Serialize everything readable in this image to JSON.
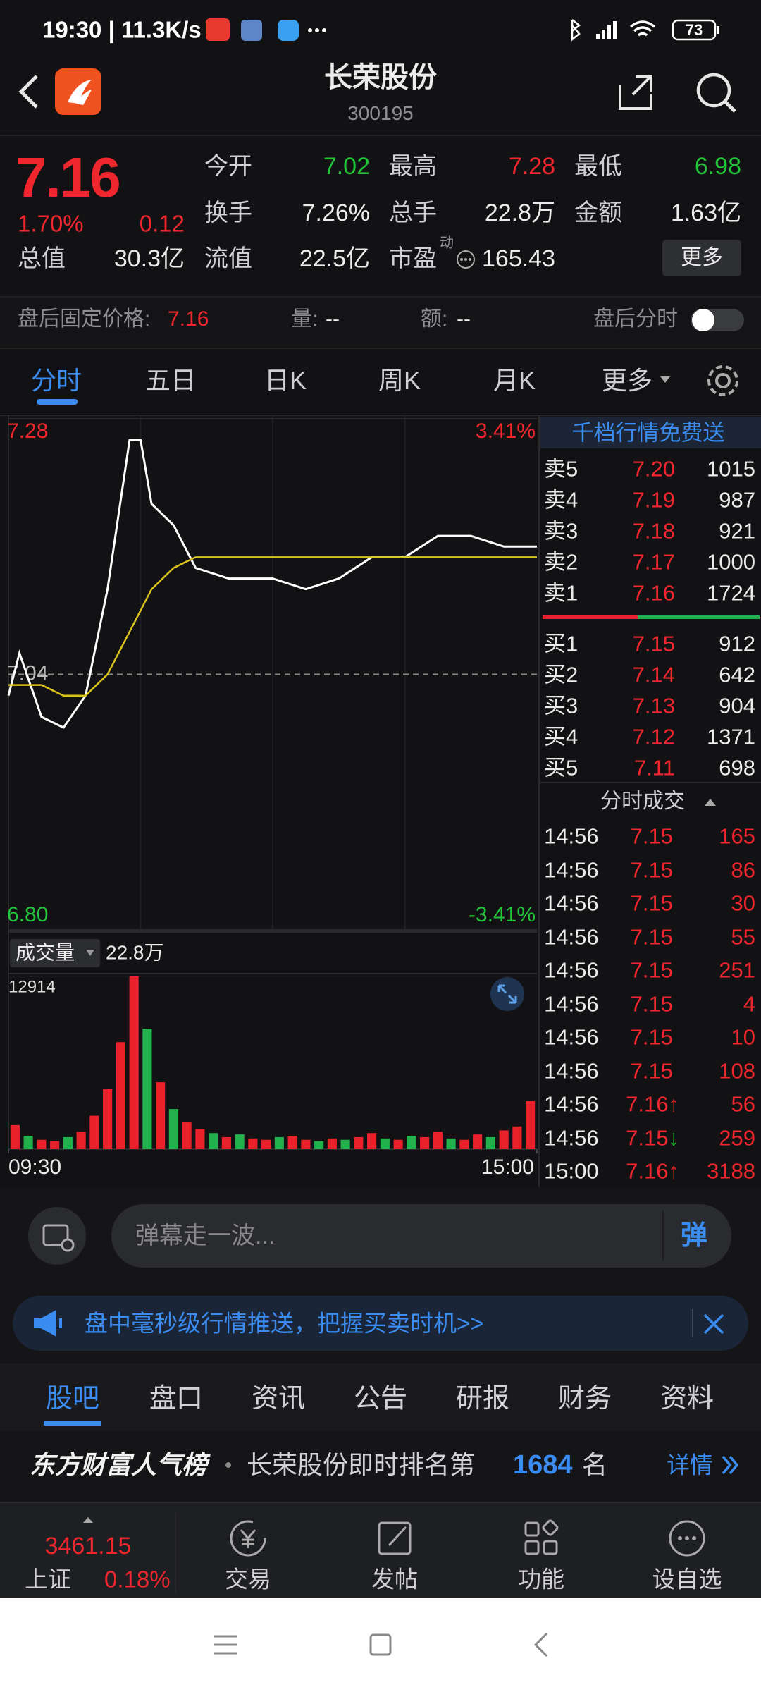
{
  "status_bar": {
    "left": "19:30 | 11.3K/s",
    "battery": "73"
  },
  "header": {
    "title": "长荣股份",
    "code": "300195"
  },
  "quote": {
    "price": "7.16",
    "change_pct": "1.70%",
    "change": "0.12",
    "stats": [
      [
        {
          "label": "今开",
          "value": "7.02"
        },
        {
          "label": "最高",
          "value": "7.28"
        },
        {
          "label": "最低",
          "value": "6.98"
        }
      ],
      [
        {
          "label": "换手",
          "value": "7.26%"
        },
        {
          "label": "总手",
          "value": "22.8万"
        },
        {
          "label": "金额",
          "value": "1.63亿"
        }
      ],
      [
        {
          "label": "总值",
          "value": "30.3亿"
        },
        {
          "label": "流值",
          "value": "22.5亿"
        },
        {
          "label": "市盈",
          "value": "165.43"
        }
      ]
    ],
    "pe_note": "动",
    "more": "更多"
  },
  "after_hours": {
    "label": "盘后固定价格:",
    "price": "7.16",
    "volume_label": "量:",
    "volume": "--",
    "amount_label": "额:",
    "amount": "--",
    "chart_toggle": "盘后分时"
  },
  "tabs": [
    "分时",
    "五日",
    "日K",
    "周K",
    "月K",
    "更多"
  ],
  "chart_data": [
    {
      "type": "line",
      "x": [
        0,
        5,
        15,
        25,
        35,
        45,
        55,
        60,
        65,
        75,
        85,
        100,
        120,
        135,
        150,
        165,
        180,
        195,
        210,
        225,
        240
      ],
      "xlim": [
        0,
        240
      ],
      "xticks": [
        {
          "value": 0,
          "label": "09:30"
        },
        {
          "value": 240,
          "label": "15:00"
        }
      ],
      "ylim": [
        6.8,
        7.28
      ],
      "yticks": [
        7.28,
        7.04,
        {
          "value": 6.8,
          "label": "6.80"
        }
      ],
      "y2lim": [
        -3.41,
        3.41
      ],
      "y2ticks": [
        {
          "value": 3.41,
          "label": "3.41%"
        },
        {
          "value": -3.41,
          "label": "-3.41%"
        }
      ],
      "series": [
        {
          "color": "#ffffff",
          "values": [
            7.02,
            7.06,
            7.0,
            6.99,
            7.02,
            7.12,
            7.26,
            7.26,
            7.2,
            7.18,
            7.14,
            7.13,
            7.13,
            7.12,
            7.13,
            7.15,
            7.15,
            7.17,
            7.17,
            7.16,
            7.16
          ]
        },
        {
          "color": "#dcc41e",
          "values": [
            7.03,
            7.03,
            7.03,
            7.02,
            7.02,
            7.04,
            7.08,
            7.1,
            7.12,
            7.14,
            7.15,
            7.15,
            7.15,
            7.15,
            7.15,
            7.15,
            7.15,
            7.15,
            7.15,
            7.15,
            7.15
          ]
        }
      ]
    },
    {
      "type": "bar",
      "label": "成交量",
      "total": "22.8万",
      "x": [
        3,
        9,
        15,
        21,
        27,
        33,
        39,
        45,
        51,
        57,
        63,
        69,
        75,
        81,
        87,
        93,
        99,
        105,
        111,
        117,
        123,
        129,
        135,
        141,
        147,
        153,
        159,
        165,
        171,
        177,
        183,
        189,
        195,
        201,
        207,
        213,
        219,
        225,
        231,
        237
      ],
      "xlim": [
        0,
        240
      ],
      "values": [
        1800,
        1000,
        700,
        600,
        900,
        1300,
        2500,
        4500,
        8000,
        12914,
        9000,
        5000,
        3000,
        2000,
        1500,
        1200,
        900,
        1100,
        800,
        700,
        900,
        1000,
        700,
        600,
        800,
        700,
        900,
        1200,
        800,
        700,
        1000,
        900,
        1300,
        800,
        700,
        1100,
        900,
        1400,
        1700,
        3600
      ],
      "colors": [
        "#e8212b",
        "#22b14c",
        "#e8212b",
        "#e8212b",
        "#22b14c",
        "#e8212b",
        "#e8212b",
        "#e8212b",
        "#e8212b",
        "#e8212b",
        "#22b14c",
        "#e8212b",
        "#22b14c",
        "#e8212b",
        "#e8212b",
        "#22b14c",
        "#e8212b",
        "#22b14c",
        "#e8212b",
        "#e8212b",
        "#22b14c",
        "#e8212b",
        "#e8212b",
        "#22b14c",
        "#e8212b",
        "#22b14c",
        "#e8212b",
        "#e8212b",
        "#22b14c",
        "#e8212b",
        "#22b14c",
        "#e8212b",
        "#e8212b",
        "#22b14c",
        "#e8212b",
        "#e8212b",
        "#22b14c",
        "#e8212b",
        "#e8212b",
        "#e8212b"
      ],
      "ylim": [
        0,
        12914
      ],
      "yticks": [
        12914
      ]
    }
  ],
  "order_book": {
    "promo": "千档行情免费送",
    "asks": [
      {
        "label": "卖5",
        "price": "7.20",
        "volume": "1015"
      },
      {
        "label": "卖4",
        "price": "7.19",
        "volume": "987"
      },
      {
        "label": "卖3",
        "price": "7.18",
        "volume": "921"
      },
      {
        "label": "卖2",
        "price": "7.17",
        "volume": "1000"
      },
      {
        "label": "卖1",
        "price": "7.16",
        "volume": "1724"
      }
    ],
    "bids": [
      {
        "label": "买1",
        "price": "7.15",
        "volume": "912"
      },
      {
        "label": "买2",
        "price": "7.14",
        "volume": "642"
      },
      {
        "label": "买3",
        "price": "7.13",
        "volume": "904"
      },
      {
        "label": "买4",
        "price": "7.12",
        "volume": "1371"
      },
      {
        "label": "买5",
        "price": "7.11",
        "volume": "698"
      }
    ]
  },
  "trades": {
    "title": "分时成交",
    "rows": [
      {
        "time": "14:56",
        "price": "7.15",
        "volume": "165"
      },
      {
        "time": "14:56",
        "price": "7.15",
        "volume": "86"
      },
      {
        "time": "14:56",
        "price": "7.15",
        "volume": "30"
      },
      {
        "time": "14:56",
        "price": "7.15",
        "volume": "55"
      },
      {
        "time": "14:56",
        "price": "7.15",
        "volume": "251"
      },
      {
        "time": "14:56",
        "price": "7.15",
        "volume": "4"
      },
      {
        "time": "14:56",
        "price": "7.15",
        "volume": "10"
      },
      {
        "time": "14:56",
        "price": "7.15",
        "volume": "108"
      },
      {
        "time": "14:56",
        "price": "7.16",
        "arrow": "↑",
        "volume": "56"
      },
      {
        "time": "14:56",
        "price": "7.15",
        "arrow": "↓",
        "volume": "259"
      },
      {
        "time": "15:00",
        "price": "7.16",
        "arrow": "↑",
        "volume": "3188"
      }
    ]
  },
  "danmu": {
    "placeholder": "弹幕走一波...",
    "button": "弹"
  },
  "banner": {
    "text": "盘中毫秒级行情推送，把握买卖时机>>"
  },
  "bottom_tabs": [
    "股吧",
    "盘口",
    "资讯",
    "公告",
    "研报",
    "财务",
    "资料"
  ],
  "ranking": {
    "brand": "东方财富人气榜",
    "text": "长荣股份即时排名第",
    "rank": "1684",
    "suffix": "名",
    "link": "详情"
  },
  "index_ticker": {
    "value": "3461.15",
    "name": "上证",
    "change": "0.18%"
  },
  "bottom_nav": [
    "交易",
    "发帖",
    "功能",
    "设自选"
  ]
}
